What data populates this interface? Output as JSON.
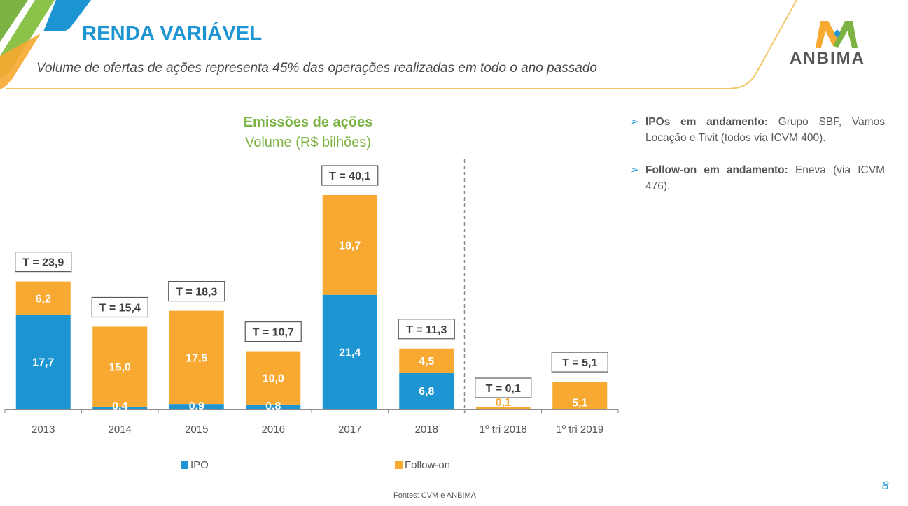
{
  "header": {
    "title": "RENDA VARIÁVEL",
    "subtitle": "Volume de ofertas de ações representa 45% das operações realizadas em todo o ano passado",
    "logo_text": "ANBIMA"
  },
  "colors": {
    "ipo": "#1e95d3",
    "follow_on": "#f7a931",
    "title_blue": "#1e95d3",
    "chart_title_green": "#7cb342"
  },
  "chart_data": {
    "type": "bar",
    "stacked": true,
    "title": "Emissões de ações",
    "subtitle": "Volume (R$ bilhões)",
    "categories": [
      "2013",
      "2014",
      "2015",
      "2016",
      "2017",
      "2018",
      "1º tri 2018",
      "1º tri 2019"
    ],
    "series": [
      {
        "name": "IPO",
        "values": [
          17.7,
          0.4,
          0.9,
          0.8,
          21.4,
          6.8,
          0,
          0
        ]
      },
      {
        "name": "Follow-on",
        "values": [
          6.2,
          15.0,
          17.5,
          10.0,
          18.7,
          4.5,
          0.1,
          5.1
        ]
      }
    ],
    "ipo_labels": [
      "17,7",
      "0,4",
      "0,9",
      "0,8",
      "21,4",
      "6,8",
      "",
      ""
    ],
    "follow_on_labels": [
      "6,2",
      "15,0",
      "17,5",
      "10,0",
      "18,7",
      "4,5",
      "0,1",
      "5,1"
    ],
    "totals": [
      23.9,
      15.4,
      18.3,
      10.7,
      40.1,
      11.3,
      0.1,
      5.1
    ],
    "total_labels": [
      "T = 23,9",
      "T = 15,4",
      "T = 18,3",
      "T = 10,7",
      "T = 40,1",
      "T = 11,3",
      "T = 0,1",
      "T = 5,1"
    ],
    "separator_after_category": "2018",
    "ylim": [
      0,
      40.1
    ],
    "legend": [
      "IPO",
      "Follow-on"
    ],
    "legend_position": "bottom",
    "grid": false
  },
  "bullets": [
    {
      "bold": "IPOs em andamento:",
      "text": " Grupo SBF, Vamos Locação e Tivit (todos via ICVM 400)."
    },
    {
      "bold": "Follow-on em andamento:",
      "text": " Eneva (via ICVM 476)."
    }
  ],
  "footer": {
    "source": "Fontes: CVM e ANBIMA",
    "page_number": "8"
  }
}
